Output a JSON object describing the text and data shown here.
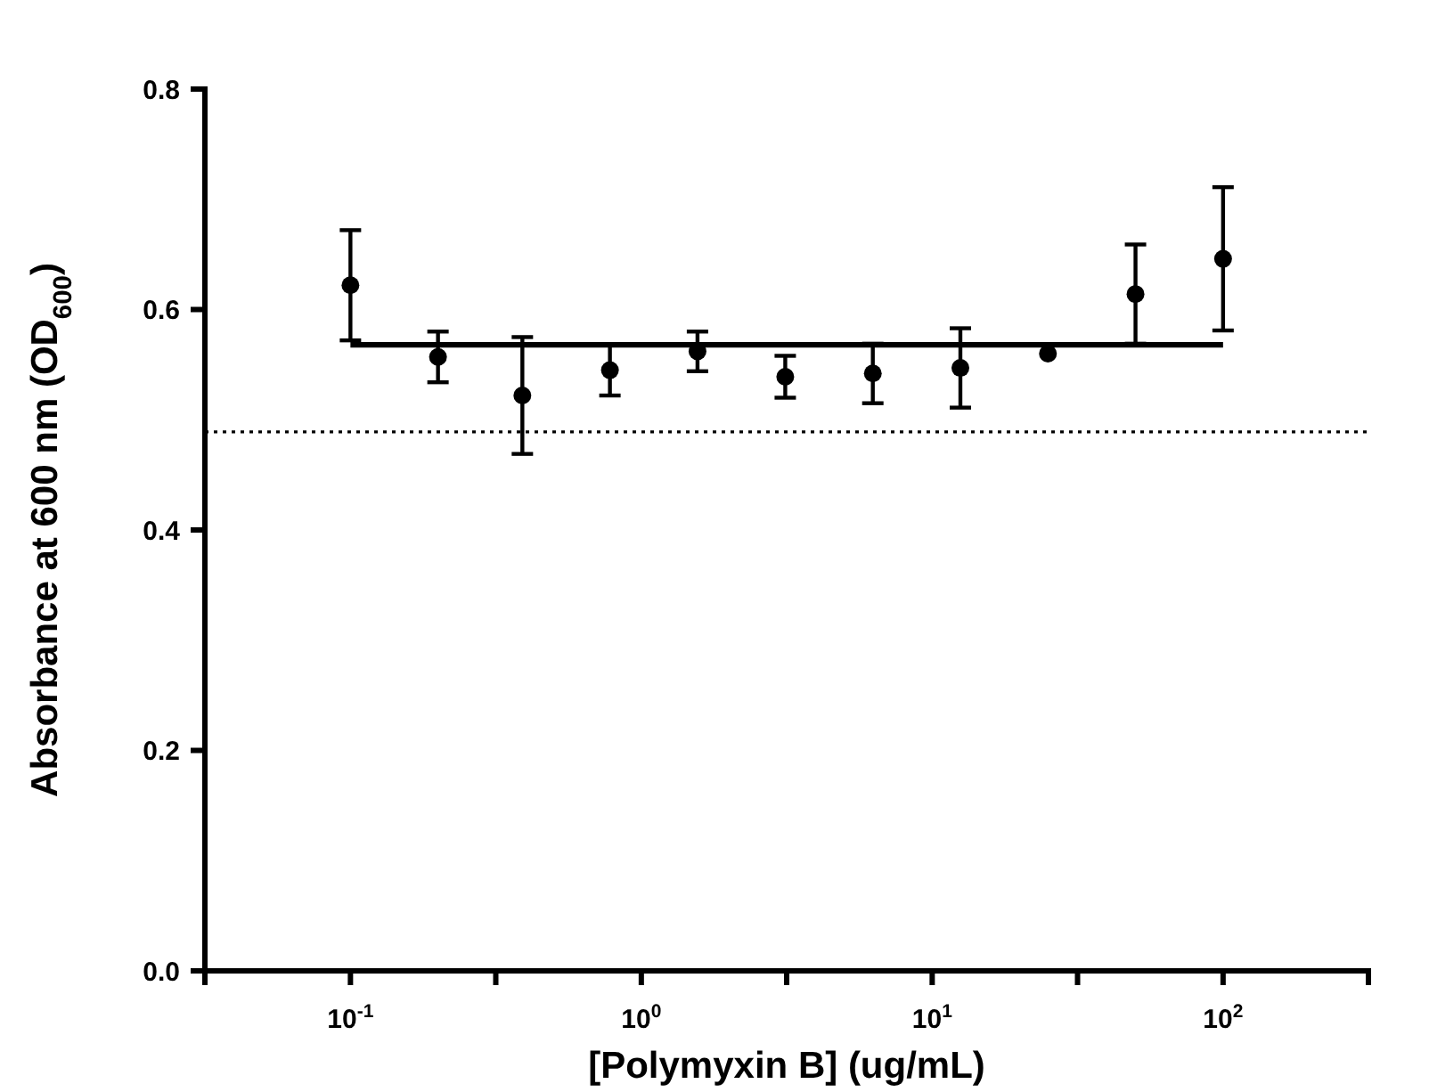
{
  "chart_data": {
    "type": "scatter",
    "xlabel": "[Polymyxin B] (ug/mL)",
    "ylabel": "Absorbance at 600 nm (OD$_{600}$)",
    "log": "x",
    "xlim": [
      0.0316,
      316
    ],
    "ylim": [
      0,
      0.8
    ],
    "xticks": [
      {
        "value": 0.1,
        "label": "10$^{-1}$"
      },
      {
        "value": 0.316,
        "label": null
      },
      {
        "value": 1,
        "label": "10$^{0}$"
      },
      {
        "value": 3.16,
        "label": null
      },
      {
        "value": 10,
        "label": "10$^{1}$"
      },
      {
        "value": 31.6,
        "label": null
      },
      {
        "value": 100,
        "label": "10$^{2}$"
      },
      {
        "value": 316,
        "label": null
      }
    ],
    "yticks": [
      {
        "value": 0,
        "label": "0.0"
      },
      {
        "value": 0.2,
        "label": "0.2"
      },
      {
        "value": 0.4,
        "label": "0.4"
      },
      {
        "value": 0.6,
        "label": "0.6"
      },
      {
        "value": 0.8,
        "label": "0.8"
      }
    ],
    "grid": false,
    "marker": "circle",
    "series": [
      {
        "color": "#000000",
        "x": [
          0.1,
          0.2,
          0.39,
          0.78,
          1.56,
          3.125,
          6.25,
          12.5,
          25,
          50,
          100
        ],
        "values": [
          0.622,
          0.557,
          0.522,
          0.545,
          0.562,
          0.539,
          0.542,
          0.547,
          0.56,
          0.614,
          0.646
        ],
        "errors": [
          0.05,
          0.023,
          0.053,
          0.023,
          0.018,
          0.019,
          0.027,
          0.036,
          null,
          0.045,
          0.065
        ]
      },
      {
        "type": "line",
        "color": "#000000",
        "x": [
          0.1,
          100
        ],
        "values": [
          0.568,
          0.568
        ],
        "line_style": "solid",
        "marker": "none"
      }
    ],
    "ref_lines": [
      {
        "axis": "y",
        "value": 0.489,
        "label": null,
        "color": "#000000",
        "line_style": "dotted"
      }
    ]
  }
}
